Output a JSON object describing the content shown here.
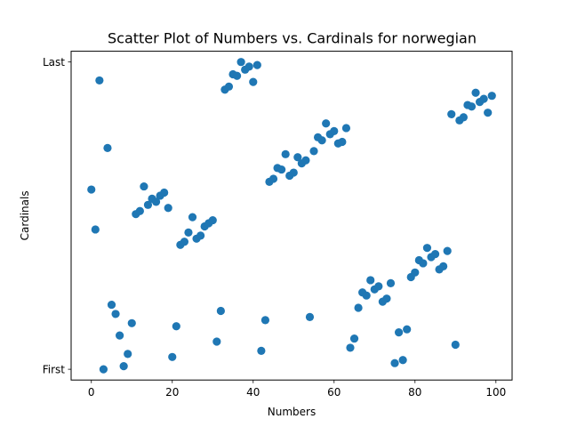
{
  "chart_data": {
    "type": "scatter",
    "title": "Scatter Plot of Numbers vs. Cardinals for norwegian",
    "xlabel": "Numbers",
    "ylabel": "Cardinals",
    "xlim": [
      -5,
      104
    ],
    "ylim": [
      -0.035,
      1.035
    ],
    "x_ticks": [
      0,
      20,
      40,
      60,
      80,
      100
    ],
    "y_ticks": [
      {
        "value": 0,
        "label": "First"
      },
      {
        "value": 1,
        "label": "Last"
      }
    ],
    "grid": false,
    "legend": "none",
    "marker_color": "#1f77b4",
    "points": [
      {
        "x": 0,
        "y": 0.585
      },
      {
        "x": 1,
        "y": 0.455
      },
      {
        "x": 2,
        "y": 0.94
      },
      {
        "x": 3,
        "y": 0.0
      },
      {
        "x": 4,
        "y": 0.72
      },
      {
        "x": 5,
        "y": 0.21
      },
      {
        "x": 6,
        "y": 0.18
      },
      {
        "x": 7,
        "y": 0.11
      },
      {
        "x": 8,
        "y": 0.01
      },
      {
        "x": 9,
        "y": 0.05
      },
      {
        "x": 10,
        "y": 0.15
      },
      {
        "x": 11,
        "y": 0.505
      },
      {
        "x": 12,
        "y": 0.515
      },
      {
        "x": 13,
        "y": 0.595
      },
      {
        "x": 14,
        "y": 0.535
      },
      {
        "x": 15,
        "y": 0.555
      },
      {
        "x": 16,
        "y": 0.545
      },
      {
        "x": 17,
        "y": 0.565
      },
      {
        "x": 18,
        "y": 0.575
      },
      {
        "x": 19,
        "y": 0.525
      },
      {
        "x": 20,
        "y": 0.04
      },
      {
        "x": 21,
        "y": 0.14
      },
      {
        "x": 22,
        "y": 0.405
      },
      {
        "x": 23,
        "y": 0.415
      },
      {
        "x": 24,
        "y": 0.445
      },
      {
        "x": 25,
        "y": 0.495
      },
      {
        "x": 26,
        "y": 0.425
      },
      {
        "x": 27,
        "y": 0.435
      },
      {
        "x": 28,
        "y": 0.465
      },
      {
        "x": 29,
        "y": 0.475
      },
      {
        "x": 30,
        "y": 0.485
      },
      {
        "x": 31,
        "y": 0.09
      },
      {
        "x": 32,
        "y": 0.19
      },
      {
        "x": 33,
        "y": 0.91
      },
      {
        "x": 34,
        "y": 0.92
      },
      {
        "x": 35,
        "y": 0.96
      },
      {
        "x": 36,
        "y": 0.955
      },
      {
        "x": 37,
        "y": 1.0
      },
      {
        "x": 38,
        "y": 0.975
      },
      {
        "x": 39,
        "y": 0.985
      },
      {
        "x": 40,
        "y": 0.935
      },
      {
        "x": 41,
        "y": 0.99
      },
      {
        "x": 42,
        "y": 0.06
      },
      {
        "x": 43,
        "y": 0.16
      },
      {
        "x": 44,
        "y": 0.61
      },
      {
        "x": 45,
        "y": 0.62
      },
      {
        "x": 46,
        "y": 0.655
      },
      {
        "x": 47,
        "y": 0.65
      },
      {
        "x": 48,
        "y": 0.7
      },
      {
        "x": 49,
        "y": 0.63
      },
      {
        "x": 50,
        "y": 0.64
      },
      {
        "x": 51,
        "y": 0.69
      },
      {
        "x": 52,
        "y": 0.67
      },
      {
        "x": 53,
        "y": 0.68
      },
      {
        "x": 54,
        "y": 0.17
      },
      {
        "x": 55,
        "y": 0.71
      },
      {
        "x": 56,
        "y": 0.755
      },
      {
        "x": 57,
        "y": 0.745
      },
      {
        "x": 58,
        "y": 0.8
      },
      {
        "x": 59,
        "y": 0.765
      },
      {
        "x": 60,
        "y": 0.775
      },
      {
        "x": 61,
        "y": 0.735
      },
      {
        "x": 62,
        "y": 0.74
      },
      {
        "x": 63,
        "y": 0.785
      },
      {
        "x": 64,
        "y": 0.07
      },
      {
        "x": 65,
        "y": 0.1
      },
      {
        "x": 66,
        "y": 0.2
      },
      {
        "x": 67,
        "y": 0.25
      },
      {
        "x": 68,
        "y": 0.24
      },
      {
        "x": 69,
        "y": 0.29
      },
      {
        "x": 70,
        "y": 0.26
      },
      {
        "x": 71,
        "y": 0.27
      },
      {
        "x": 72,
        "y": 0.22
      },
      {
        "x": 73,
        "y": 0.23
      },
      {
        "x": 74,
        "y": 0.28
      },
      {
        "x": 75,
        "y": 0.02
      },
      {
        "x": 76,
        "y": 0.12
      },
      {
        "x": 77,
        "y": 0.03
      },
      {
        "x": 78,
        "y": 0.13
      },
      {
        "x": 79,
        "y": 0.3
      },
      {
        "x": 80,
        "y": 0.315
      },
      {
        "x": 81,
        "y": 0.355
      },
      {
        "x": 82,
        "y": 0.345
      },
      {
        "x": 83,
        "y": 0.395
      },
      {
        "x": 84,
        "y": 0.365
      },
      {
        "x": 85,
        "y": 0.375
      },
      {
        "x": 86,
        "y": 0.325
      },
      {
        "x": 87,
        "y": 0.335
      },
      {
        "x": 88,
        "y": 0.385
      },
      {
        "x": 89,
        "y": 0.83
      },
      {
        "x": 90,
        "y": 0.08
      },
      {
        "x": 91,
        "y": 0.81
      },
      {
        "x": 92,
        "y": 0.82
      },
      {
        "x": 93,
        "y": 0.86
      },
      {
        "x": 94,
        "y": 0.855
      },
      {
        "x": 95,
        "y": 0.9
      },
      {
        "x": 96,
        "y": 0.87
      },
      {
        "x": 97,
        "y": 0.88
      },
      {
        "x": 98,
        "y": 0.835
      },
      {
        "x": 99,
        "y": 0.89
      }
    ]
  }
}
